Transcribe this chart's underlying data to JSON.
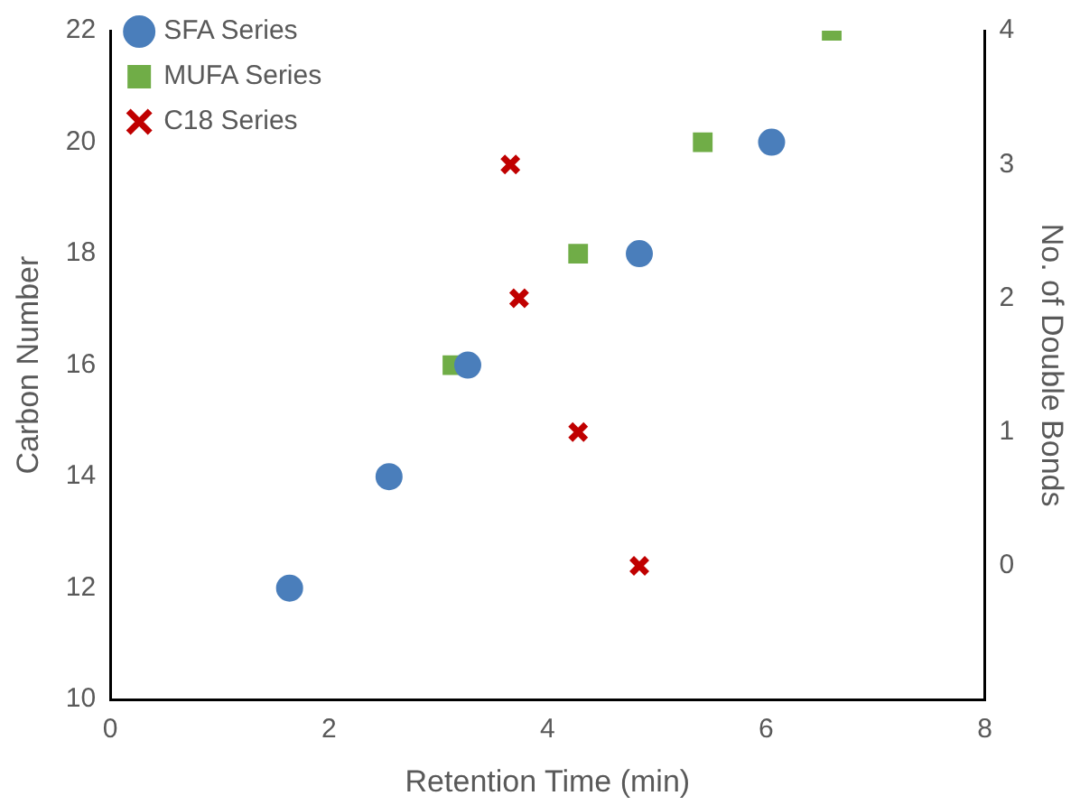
{
  "chart_data": {
    "type": "scatter",
    "xlabel": "Retention Time (min)",
    "ylabel": "Carbon Number",
    "y2label": "No. of Double Bonds",
    "xlim": [
      0,
      8
    ],
    "xticks": [
      0,
      2,
      4,
      6,
      8
    ],
    "ylim": [
      10,
      22
    ],
    "yticks": [
      10,
      12,
      14,
      16,
      18,
      20,
      22
    ],
    "y2lim": [
      -1,
      4
    ],
    "y2ticks": [
      0,
      1,
      2,
      3,
      4
    ],
    "grid": false,
    "legend": "top left",
    "series": [
      {
        "name": "SFA Series",
        "color": "#4a7ebb",
        "marker": "circle",
        "x": [
          1.64,
          2.55,
          3.27,
          4.84,
          6.05
        ],
        "values": [
          12,
          14,
          16,
          18,
          20
        ]
      },
      {
        "name": "MUFA Series",
        "color": "#70ad47",
        "marker": "square",
        "x": [
          3.13,
          4.28,
          5.42,
          6.6
        ],
        "values": [
          16,
          18,
          20,
          22
        ]
      },
      {
        "name": "C18 Series",
        "color": "#c00000",
        "marker": "cross",
        "axis": "y2",
        "x": [
          3.66,
          3.74,
          4.28,
          4.84
        ],
        "values": [
          3,
          2,
          1,
          0
        ]
      }
    ]
  }
}
